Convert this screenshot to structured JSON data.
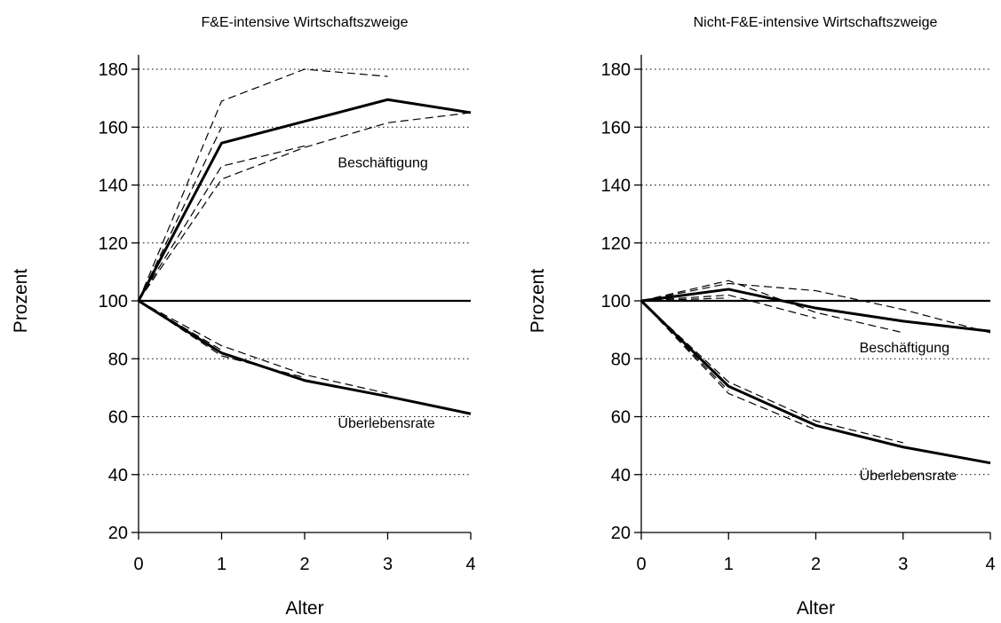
{
  "chart_data": [
    {
      "type": "line",
      "title": "F&E-intensive Wirtschaftszweige",
      "xlabel": "Alter",
      "ylabel": "Prozent",
      "xlim": [
        0,
        4
      ],
      "ylim": [
        20,
        185
      ],
      "xticks": [
        0,
        1,
        2,
        3,
        4
      ],
      "xtick_labels": [
        "0",
        "1",
        "2",
        "3",
        "4"
      ],
      "yticks": [
        20,
        40,
        60,
        80,
        100,
        120,
        140,
        160,
        180
      ],
      "ytick_labels": [
        "20",
        "40",
        "60",
        "80",
        "100",
        "120",
        "140",
        "160",
        "180"
      ],
      "grid": "horizontal dotted",
      "reference_line": 100,
      "annotations": [
        {
          "text": "Beschäftigung",
          "x": 2.4,
          "y": 148
        },
        {
          "text": "Überlebensrate",
          "x": 2.4,
          "y": 58
        }
      ],
      "series": [
        {
          "style": "solid",
          "x": [
            0,
            1,
            2,
            3,
            4
          ],
          "y": [
            100,
            154.5,
            162,
            169.5,
            165
          ]
        },
        {
          "style": "dashed",
          "x": [
            0,
            1,
            2,
            3
          ],
          "y": [
            100,
            169,
            180,
            177.5
          ]
        },
        {
          "style": "dashed",
          "x": [
            0,
            1,
            2,
            3,
            4
          ],
          "y": [
            100,
            142,
            153,
            161.5,
            165
          ]
        },
        {
          "style": "dashed",
          "x": [
            0,
            1,
            2
          ],
          "y": [
            100,
            146.5,
            153.5
          ]
        },
        {
          "style": "dashed",
          "x": [
            0,
            1
          ],
          "y": [
            100,
            160
          ]
        },
        {
          "style": "solid",
          "x": [
            0,
            1,
            2,
            3,
            4
          ],
          "y": [
            100,
            82,
            72.5,
            67,
            61
          ]
        },
        {
          "style": "dashed",
          "x": [
            0,
            1,
            2,
            3
          ],
          "y": [
            100,
            84.5,
            74.5,
            68
          ]
        },
        {
          "style": "dashed",
          "x": [
            0,
            1,
            2
          ],
          "y": [
            100,
            81,
            73.5
          ]
        },
        {
          "style": "dashed",
          "x": [
            0,
            1
          ],
          "y": [
            100,
            83
          ]
        }
      ]
    },
    {
      "type": "line",
      "title": "Nicht-F&E-intensive Wirtschaftszweige",
      "xlabel": "Alter",
      "ylabel": "Prozent",
      "xlim": [
        0,
        4
      ],
      "ylim": [
        20,
        185
      ],
      "xticks": [
        0,
        1,
        2,
        3,
        4
      ],
      "xtick_labels": [
        "0",
        "1",
        "2",
        "3",
        "4"
      ],
      "yticks": [
        20,
        40,
        60,
        80,
        100,
        120,
        140,
        160,
        180
      ],
      "ytick_labels": [
        "20",
        "40",
        "60",
        "80",
        "100",
        "120",
        "140",
        "160",
        "180"
      ],
      "grid": "horizontal dotted",
      "reference_line": 100,
      "annotations": [
        {
          "text": "Beschäftigung",
          "x": 2.5,
          "y": 84
        },
        {
          "text": "Überlebensrate",
          "x": 2.5,
          "y": 40
        }
      ],
      "series": [
        {
          "style": "solid",
          "x": [
            0,
            1,
            2,
            3,
            4
          ],
          "y": [
            100,
            104,
            97.5,
            93,
            89.5
          ]
        },
        {
          "style": "dashed",
          "x": [
            0,
            1,
            2,
            3,
            4
          ],
          "y": [
            100,
            106,
            103.5,
            97,
            89
          ]
        },
        {
          "style": "dashed",
          "x": [
            0,
            1,
            2,
            3
          ],
          "y": [
            100,
            107,
            96,
            89
          ]
        },
        {
          "style": "dashed",
          "x": [
            0,
            1,
            2
          ],
          "y": [
            100,
            102,
            94
          ]
        },
        {
          "style": "dashed",
          "x": [
            0,
            1
          ],
          "y": [
            100,
            101
          ]
        },
        {
          "style": "solid",
          "x": [
            0,
            1,
            2,
            3,
            4
          ],
          "y": [
            100,
            70.5,
            57,
            49.5,
            44
          ]
        },
        {
          "style": "dashed",
          "x": [
            0,
            1,
            2,
            3
          ],
          "y": [
            100,
            72,
            58.5,
            51
          ]
        },
        {
          "style": "dashed",
          "x": [
            0,
            1,
            2
          ],
          "y": [
            100,
            68,
            55.5
          ]
        },
        {
          "style": "dashed",
          "x": [
            0,
            1
          ],
          "y": [
            100,
            69
          ]
        }
      ]
    }
  ]
}
